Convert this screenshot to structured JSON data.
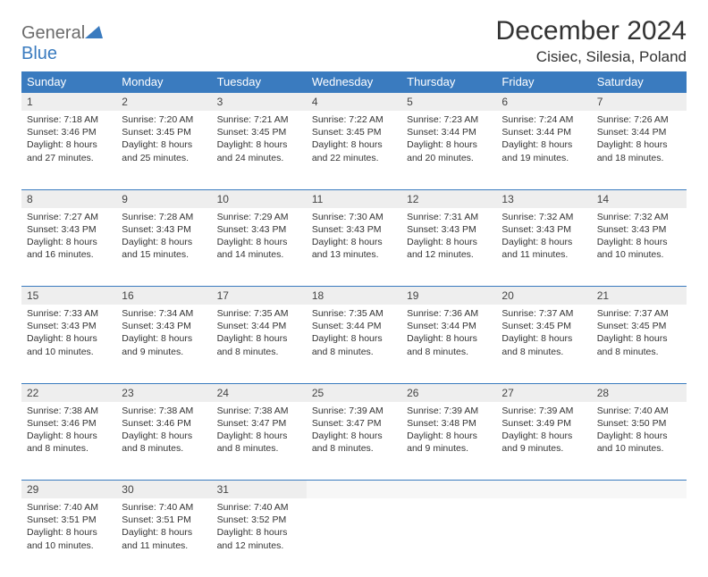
{
  "logo": {
    "top": "General",
    "bottom": "Blue"
  },
  "title": "December 2024",
  "location": "Cisiec, Silesia, Poland",
  "colors": {
    "header_bg": "#3a7bbf",
    "header_text": "#ffffff",
    "daynum_bg": "#eeeeee",
    "border": "#3a7bbf",
    "logo_gray": "#6b6b6b",
    "logo_blue": "#3a7bbf"
  },
  "weekdays": [
    "Sunday",
    "Monday",
    "Tuesday",
    "Wednesday",
    "Thursday",
    "Friday",
    "Saturday"
  ],
  "weeks": [
    [
      {
        "n": "1",
        "sr": "7:18 AM",
        "ss": "3:46 PM",
        "dl": "8 hours and 27 minutes."
      },
      {
        "n": "2",
        "sr": "7:20 AM",
        "ss": "3:45 PM",
        "dl": "8 hours and 25 minutes."
      },
      {
        "n": "3",
        "sr": "7:21 AM",
        "ss": "3:45 PM",
        "dl": "8 hours and 24 minutes."
      },
      {
        "n": "4",
        "sr": "7:22 AM",
        "ss": "3:45 PM",
        "dl": "8 hours and 22 minutes."
      },
      {
        "n": "5",
        "sr": "7:23 AM",
        "ss": "3:44 PM",
        "dl": "8 hours and 20 minutes."
      },
      {
        "n": "6",
        "sr": "7:24 AM",
        "ss": "3:44 PM",
        "dl": "8 hours and 19 minutes."
      },
      {
        "n": "7",
        "sr": "7:26 AM",
        "ss": "3:44 PM",
        "dl": "8 hours and 18 minutes."
      }
    ],
    [
      {
        "n": "8",
        "sr": "7:27 AM",
        "ss": "3:43 PM",
        "dl": "8 hours and 16 minutes."
      },
      {
        "n": "9",
        "sr": "7:28 AM",
        "ss": "3:43 PM",
        "dl": "8 hours and 15 minutes."
      },
      {
        "n": "10",
        "sr": "7:29 AM",
        "ss": "3:43 PM",
        "dl": "8 hours and 14 minutes."
      },
      {
        "n": "11",
        "sr": "7:30 AM",
        "ss": "3:43 PM",
        "dl": "8 hours and 13 minutes."
      },
      {
        "n": "12",
        "sr": "7:31 AM",
        "ss": "3:43 PM",
        "dl": "8 hours and 12 minutes."
      },
      {
        "n": "13",
        "sr": "7:32 AM",
        "ss": "3:43 PM",
        "dl": "8 hours and 11 minutes."
      },
      {
        "n": "14",
        "sr": "7:32 AM",
        "ss": "3:43 PM",
        "dl": "8 hours and 10 minutes."
      }
    ],
    [
      {
        "n": "15",
        "sr": "7:33 AM",
        "ss": "3:43 PM",
        "dl": "8 hours and 10 minutes."
      },
      {
        "n": "16",
        "sr": "7:34 AM",
        "ss": "3:43 PM",
        "dl": "8 hours and 9 minutes."
      },
      {
        "n": "17",
        "sr": "7:35 AM",
        "ss": "3:44 PM",
        "dl": "8 hours and 8 minutes."
      },
      {
        "n": "18",
        "sr": "7:35 AM",
        "ss": "3:44 PM",
        "dl": "8 hours and 8 minutes."
      },
      {
        "n": "19",
        "sr": "7:36 AM",
        "ss": "3:44 PM",
        "dl": "8 hours and 8 minutes."
      },
      {
        "n": "20",
        "sr": "7:37 AM",
        "ss": "3:45 PM",
        "dl": "8 hours and 8 minutes."
      },
      {
        "n": "21",
        "sr": "7:37 AM",
        "ss": "3:45 PM",
        "dl": "8 hours and 8 minutes."
      }
    ],
    [
      {
        "n": "22",
        "sr": "7:38 AM",
        "ss": "3:46 PM",
        "dl": "8 hours and 8 minutes."
      },
      {
        "n": "23",
        "sr": "7:38 AM",
        "ss": "3:46 PM",
        "dl": "8 hours and 8 minutes."
      },
      {
        "n": "24",
        "sr": "7:38 AM",
        "ss": "3:47 PM",
        "dl": "8 hours and 8 minutes."
      },
      {
        "n": "25",
        "sr": "7:39 AM",
        "ss": "3:47 PM",
        "dl": "8 hours and 8 minutes."
      },
      {
        "n": "26",
        "sr": "7:39 AM",
        "ss": "3:48 PM",
        "dl": "8 hours and 9 minutes."
      },
      {
        "n": "27",
        "sr": "7:39 AM",
        "ss": "3:49 PM",
        "dl": "8 hours and 9 minutes."
      },
      {
        "n": "28",
        "sr": "7:40 AM",
        "ss": "3:50 PM",
        "dl": "8 hours and 10 minutes."
      }
    ],
    [
      {
        "n": "29",
        "sr": "7:40 AM",
        "ss": "3:51 PM",
        "dl": "8 hours and 10 minutes."
      },
      {
        "n": "30",
        "sr": "7:40 AM",
        "ss": "3:51 PM",
        "dl": "8 hours and 11 minutes."
      },
      {
        "n": "31",
        "sr": "7:40 AM",
        "ss": "3:52 PM",
        "dl": "8 hours and 12 minutes."
      },
      null,
      null,
      null,
      null
    ]
  ],
  "labels": {
    "sunrise": "Sunrise:",
    "sunset": "Sunset:",
    "daylight": "Daylight:"
  }
}
